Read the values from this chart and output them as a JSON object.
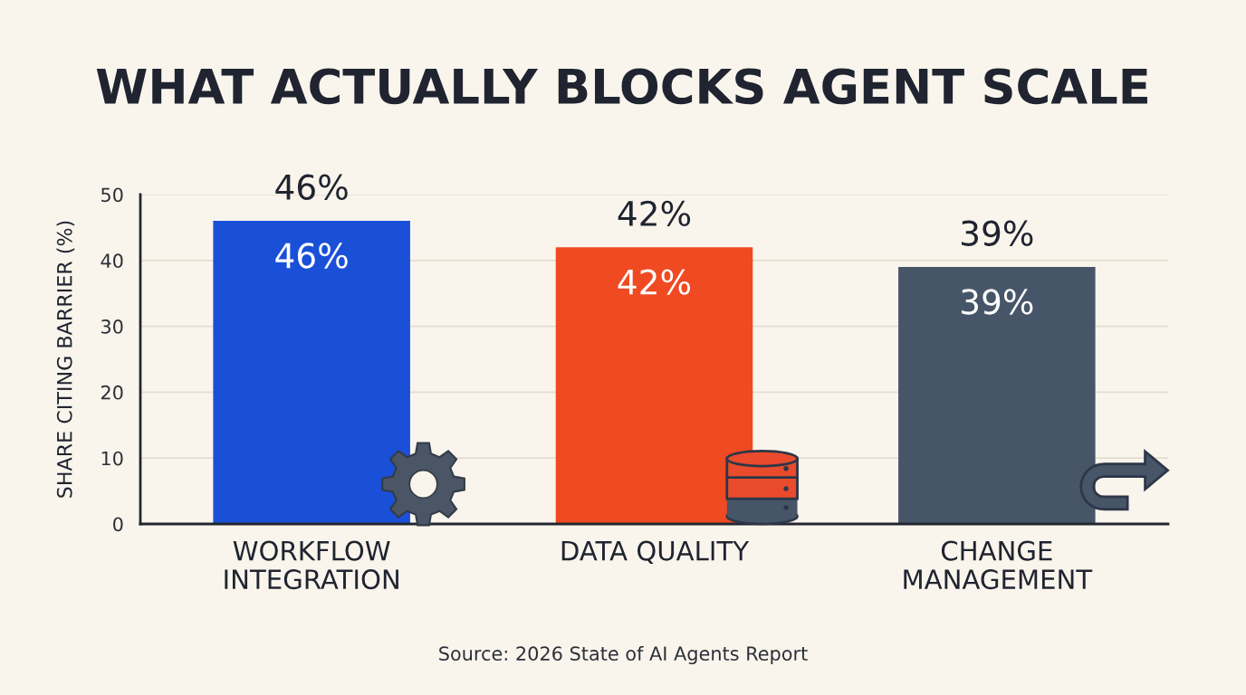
{
  "chart_data": {
    "type": "bar",
    "title": "WHAT ACTUALLY BLOCKS AGENT SCALE",
    "ylabel": "SHARE CITING BARRIER (%)",
    "categories": [
      "WORKFLOW\nINTEGRATION",
      "DATA QUALITY",
      "CHANGE\nMANAGEMENT"
    ],
    "values": [
      46,
      42,
      39
    ],
    "colors": [
      "#1a4fd8",
      "#f04a23",
      "#475569"
    ],
    "value_labels": [
      "46%",
      "42%",
      "39%"
    ],
    "ylim": [
      0,
      50
    ],
    "yticks": [
      0,
      10,
      20,
      30,
      40,
      50
    ],
    "grid": "y",
    "annotations": [
      "Source: 2026 State of AI Agents Report"
    ]
  }
}
